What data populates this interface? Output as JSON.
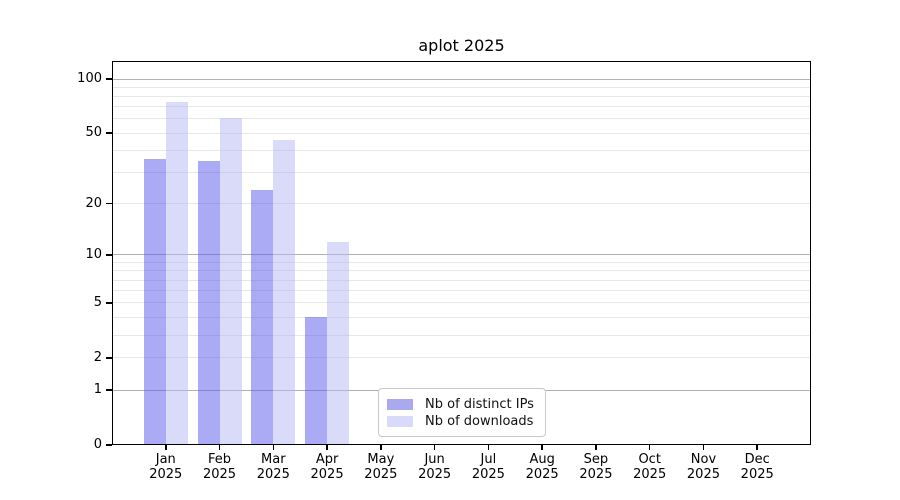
{
  "title": "aplot 2025",
  "legend": {
    "items": [
      {
        "label": "Nb of distinct IPs",
        "color": "#a9a9ef"
      },
      {
        "label": "Nb of downloads",
        "color": "#d9d9f9"
      }
    ]
  },
  "chart_data": {
    "type": "bar",
    "title": "aplot 2025",
    "categories": [
      "Jan",
      "Feb",
      "Mar",
      "Apr",
      "May",
      "Jun",
      "Jul",
      "Aug",
      "Sep",
      "Oct",
      "Nov",
      "Dec"
    ],
    "category_year": "2025",
    "series": [
      {
        "name": "Nb of distinct IPs",
        "fill": "rgba(88,88,235,0.5)",
        "legend_color": "#a9a9ef",
        "values": [
          36,
          35,
          24,
          4,
          0,
          0,
          0,
          0,
          0,
          0,
          0,
          0
        ]
      },
      {
        "name": "Nb of downloads",
        "fill": "rgba(182,182,243,0.5)",
        "legend_color": "#d9d9f9",
        "values": [
          75,
          61,
          46,
          12,
          0,
          0,
          0,
          0,
          0,
          0,
          0,
          0
        ]
      }
    ],
    "xlabel": "",
    "ylabel": "",
    "yscale": "log1p",
    "ylim": [
      0,
      124
    ],
    "ytick_values": [
      0,
      1,
      2,
      5,
      10,
      20,
      50,
      100
    ],
    "major_gridlines": [
      1,
      10,
      100
    ],
    "minor_gridlines": [
      2,
      3,
      4,
      5,
      6,
      7,
      8,
      9,
      20,
      30,
      40,
      50,
      60,
      70,
      80,
      90
    ],
    "grid": "horizontal",
    "legend_position": "lower center inside axes"
  },
  "colors": {
    "background": "#ffffff",
    "axis": "#000000",
    "grid_major": "#b0b0b0",
    "grid_minor": "#e7e7e7",
    "bar_distinct_ips": "#a9a9ef",
    "bar_downloads": "#d9d9f9"
  }
}
